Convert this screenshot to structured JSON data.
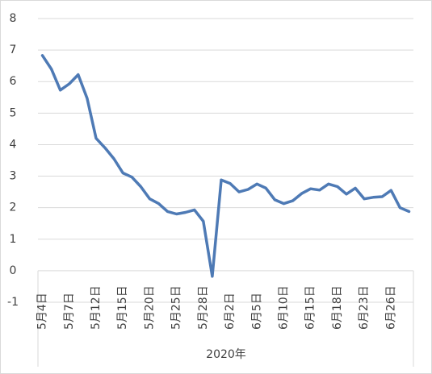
{
  "chart_data": {
    "type": "line",
    "xlabel": "2020年",
    "categories": [
      "5月4日",
      null,
      null,
      "5月7日",
      null,
      null,
      "5月12日",
      null,
      null,
      "5月15日",
      null,
      null,
      "5月20日",
      null,
      null,
      "5月25日",
      null,
      null,
      "5月28日",
      null,
      null,
      "6月2日",
      null,
      null,
      "6月5日",
      null,
      null,
      "6月10日",
      null,
      null,
      "6月15日",
      null,
      null,
      "6月18日",
      null,
      null,
      "6月23日",
      null,
      null,
      "6月26日",
      null,
      null
    ],
    "values": [
      6.83,
      6.4,
      5.73,
      5.93,
      6.22,
      5.47,
      4.2,
      3.9,
      3.55,
      3.1,
      2.97,
      2.67,
      2.28,
      2.13,
      1.88,
      1.8,
      1.85,
      1.93,
      1.57,
      -0.18,
      2.88,
      2.77,
      2.5,
      2.58,
      2.75,
      2.62,
      2.25,
      2.13,
      2.22,
      2.45,
      2.6,
      2.56,
      2.75,
      2.67,
      2.43,
      2.62,
      2.28,
      2.33,
      2.35,
      2.55,
      2.0,
      1.88
    ],
    "color": "#4e7ab5",
    "ylim": [
      -1,
      8
    ],
    "yticks": [
      -1,
      0,
      1,
      2,
      3,
      4,
      5,
      6,
      7,
      8
    ],
    "grid": true
  }
}
